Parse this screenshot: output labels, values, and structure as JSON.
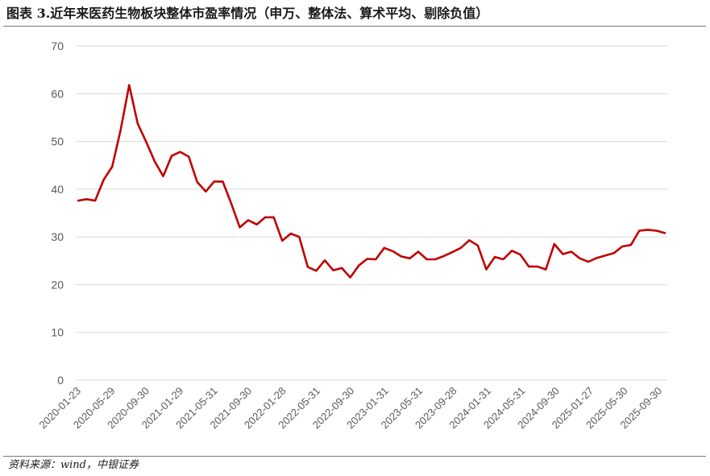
{
  "header": {
    "title": "图表 3.近年来医药生物板块整体市盈率情况（申万、整体法、算术平均、剔除负值）"
  },
  "footer": {
    "source": "资料来源：wind，中银证券"
  },
  "colors": {
    "line": "#c00000",
    "grid": "#d9d9d9",
    "tick_text": "#595959"
  },
  "chart_data": {
    "type": "line",
    "title": "",
    "xlabel": "",
    "ylabel": "",
    "ylim": [
      0,
      70
    ],
    "yticks": [
      0,
      10,
      20,
      30,
      40,
      50,
      60,
      70
    ],
    "grid": true,
    "legend": "none",
    "xtick_labels": [
      "2020-01-23",
      "2020-05-29",
      "2020-09-30",
      "2021-01-29",
      "2021-05-31",
      "2021-09-30",
      "2022-01-28",
      "2022-05-31",
      "2022-09-30",
      "2023-01-31",
      "2023-05-31",
      "2023-09-28",
      "2024-01-31",
      "2024-05-31",
      "2024-09-30",
      "2025-01-27",
      "2025-05-30",
      "2025-09-30"
    ],
    "series": [
      {
        "values": [
          37.6,
          37.9,
          37.6,
          42.0,
          44.7,
          52.5,
          61.8,
          53.7,
          49.9,
          45.8,
          42.7,
          47.0,
          47.8,
          46.8,
          41.5,
          39.5,
          41.6,
          41.6,
          37.0,
          32.0,
          33.5,
          32.6,
          34.1,
          34.1,
          29.2,
          30.7,
          30.0,
          23.7,
          22.9,
          25.1,
          23.0,
          23.5,
          21.5,
          24.0,
          25.4,
          25.3,
          27.7,
          27.0,
          25.9,
          25.5,
          26.9,
          25.3,
          25.3,
          26.0,
          26.8,
          27.7,
          29.3,
          28.2,
          23.2,
          25.8,
          25.3,
          27.1,
          26.3,
          23.8,
          23.8,
          23.2,
          28.5,
          26.4,
          26.9,
          25.5,
          24.8,
          25.6,
          26.1,
          26.6,
          28.0,
          28.3,
          31.3,
          31.5,
          31.3,
          30.8
        ]
      }
    ]
  }
}
